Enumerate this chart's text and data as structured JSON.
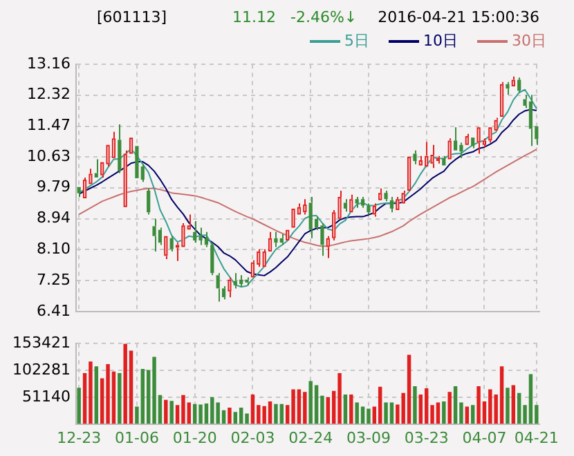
{
  "chart_data": [
    {
      "type": "candlestick",
      "title": "[601113]",
      "annotations": [
        "11.12",
        "-2.46%↓",
        "2016-04-21 15:00:36"
      ],
      "categories": [
        null,
        null,
        null,
        null,
        null,
        null,
        null,
        null,
        null,
        null,
        null,
        null,
        null,
        null,
        null,
        null,
        null,
        null,
        null,
        null,
        null,
        null,
        null,
        null,
        null,
        null,
        null,
        null,
        null,
        null,
        null,
        null,
        null,
        null,
        null,
        null,
        null,
        null,
        null,
        null,
        null,
        null,
        null,
        null,
        null,
        null,
        null,
        null,
        null,
        null,
        null,
        null,
        null,
        null,
        null,
        null,
        null,
        null,
        null,
        null,
        null,
        null,
        null,
        null,
        null,
        null,
        null,
        null,
        null,
        null,
        null,
        null,
        null,
        null,
        null,
        null,
        null,
        null,
        null,
        null
      ],
      "ohlc": [
        [
          9.81,
          9.86,
          9.54,
          9.64
        ],
        [
          9.5,
          10.07,
          9.48,
          10.01
        ],
        [
          9.89,
          10.31,
          9.86,
          10.17
        ],
        [
          10.19,
          10.57,
          10.05,
          10.07
        ],
        [
          10.13,
          10.52,
          10.07,
          10.49
        ],
        [
          10.43,
          11.0,
          10.37,
          10.96
        ],
        [
          10.6,
          11.32,
          10.57,
          11.14
        ],
        [
          11.1,
          11.52,
          10.19,
          10.25
        ],
        [
          9.26,
          10.81,
          9.24,
          10.72
        ],
        [
          10.72,
          11.2,
          10.69,
          11.16
        ],
        [
          10.93,
          10.96,
          10.01,
          10.05
        ],
        [
          10.37,
          10.43,
          9.95,
          10.01
        ],
        [
          9.71,
          9.77,
          9.06,
          9.12
        ],
        [
          8.74,
          8.94,
          8.05,
          8.47
        ],
        [
          8.64,
          8.7,
          8.23,
          8.29
        ],
        [
          7.93,
          8.5,
          7.84,
          8.47
        ],
        [
          8.41,
          8.47,
          8.05,
          8.11
        ],
        [
          8.15,
          8.29,
          7.79,
          8.23
        ],
        [
          8.17,
          8.82,
          8.15,
          8.76
        ],
        [
          8.65,
          9.06,
          8.64,
          8.76
        ],
        [
          8.58,
          8.88,
          8.29,
          8.35
        ],
        [
          8.47,
          8.7,
          8.23,
          8.35
        ],
        [
          8.41,
          8.58,
          8.17,
          8.23
        ],
        [
          8.23,
          8.29,
          7.4,
          7.46
        ],
        [
          7.4,
          7.46,
          6.68,
          7.04
        ],
        [
          7.04,
          7.1,
          6.74,
          6.8
        ],
        [
          6.96,
          7.34,
          6.8,
          7.28
        ],
        [
          7.24,
          7.46,
          7.04,
          7.12
        ],
        [
          7.28,
          7.4,
          7.08,
          7.16
        ],
        [
          7.28,
          7.34,
          7.12,
          7.2
        ],
        [
          7.34,
          7.81,
          7.31,
          7.75
        ],
        [
          7.69,
          8.11,
          7.63,
          8.05
        ],
        [
          7.63,
          8.11,
          7.63,
          8.05
        ],
        [
          8.05,
          8.58,
          8.03,
          8.41
        ],
        [
          8.41,
          8.58,
          8.17,
          8.29
        ],
        [
          8.41,
          8.52,
          8.23,
          8.29
        ],
        [
          8.35,
          8.67,
          8.31,
          8.64
        ],
        [
          8.7,
          9.26,
          8.67,
          9.22
        ],
        [
          9.06,
          9.36,
          9.02,
          9.26
        ],
        [
          9.12,
          9.48,
          9.06,
          9.33
        ],
        [
          9.38,
          9.54,
          8.41,
          8.64
        ],
        [
          8.94,
          9.0,
          8.64,
          8.7
        ],
        [
          8.76,
          8.82,
          7.93,
          8.23
        ],
        [
          8.17,
          8.47,
          7.87,
          8.41
        ],
        [
          8.41,
          9.18,
          8.35,
          9.12
        ],
        [
          8.94,
          9.71,
          8.91,
          9.54
        ],
        [
          9.38,
          9.48,
          9.14,
          9.22
        ],
        [
          9.12,
          9.6,
          9.1,
          9.48
        ],
        [
          9.48,
          9.54,
          9.24,
          9.36
        ],
        [
          9.48,
          9.54,
          9.24,
          9.3
        ],
        [
          9.3,
          9.36,
          9.06,
          9.12
        ],
        [
          9.06,
          9.36,
          9.0,
          9.3
        ],
        [
          9.45,
          9.77,
          9.42,
          9.65
        ],
        [
          9.65,
          9.71,
          9.42,
          9.48
        ],
        [
          9.45,
          9.54,
          9.12,
          9.22
        ],
        [
          9.18,
          9.54,
          9.14,
          9.48
        ],
        [
          9.36,
          9.71,
          9.33,
          9.65
        ],
        [
          9.71,
          10.66,
          9.69,
          10.64
        ],
        [
          10.72,
          10.81,
          10.43,
          10.52
        ],
        [
          10.4,
          10.66,
          10.37,
          10.54
        ],
        [
          10.37,
          11.04,
          10.33,
          10.66
        ],
        [
          10.45,
          10.96,
          10.33,
          10.69
        ],
        [
          10.52,
          10.66,
          10.45,
          10.6
        ],
        [
          10.6,
          10.66,
          10.37,
          10.4
        ],
        [
          10.57,
          11.14,
          10.54,
          11.08
        ],
        [
          11.08,
          11.44,
          10.78,
          10.81
        ],
        [
          10.96,
          11.02,
          10.6,
          10.78
        ],
        [
          10.96,
          11.26,
          10.93,
          11.2
        ],
        [
          11.16,
          11.2,
          10.87,
          10.93
        ],
        [
          11.02,
          11.47,
          10.72,
          11.44
        ],
        [
          10.96,
          11.14,
          10.9,
          11.08
        ],
        [
          11.08,
          11.47,
          11.02,
          11.44
        ],
        [
          11.35,
          11.7,
          11.32,
          11.64
        ],
        [
          11.73,
          12.68,
          11.7,
          12.62
        ],
        [
          12.62,
          12.68,
          12.33,
          12.5
        ],
        [
          12.56,
          12.83,
          12.54,
          12.74
        ],
        [
          12.74,
          12.8,
          12.38,
          12.44
        ],
        [
          12.21,
          12.33,
          11.97,
          12.03
        ],
        [
          12.15,
          12.33,
          10.93,
          11.4
        ],
        [
          11.47,
          11.5,
          10.96,
          11.12
        ]
      ],
      "series": [
        {
          "name": "5日",
          "type": "line",
          "color": "#3a9e96",
          "values": [
            9.65,
            9.75,
            9.85,
            9.95,
            10.08,
            10.34,
            10.57,
            10.58,
            10.71,
            10.85,
            10.66,
            10.44,
            10.21,
            9.76,
            9.19,
            8.87,
            8.49,
            8.31,
            8.37,
            8.47,
            8.44,
            8.49,
            8.49,
            8.23,
            7.89,
            7.58,
            7.36,
            7.14,
            7.08,
            7.11,
            7.3,
            7.46,
            7.64,
            7.89,
            8.11,
            8.22,
            8.34,
            8.57,
            8.74,
            8.95,
            9.02,
            9.03,
            8.83,
            8.66,
            8.62,
            8.8,
            8.9,
            9.15,
            9.34,
            9.38,
            9.3,
            9.31,
            9.35,
            9.37,
            9.35,
            9.43,
            9.5,
            9.69,
            9.9,
            10.17,
            10.4,
            10.61,
            10.6,
            10.58,
            10.69,
            10.72,
            10.73,
            10.85,
            10.96,
            11.03,
            11.09,
            11.22,
            11.31,
            11.64,
            11.86,
            12.19,
            12.39,
            12.47,
            12.22,
            11.95
          ]
        },
        {
          "name": "10日",
          "type": "line",
          "color": "#000066",
          "values": [
            9.62,
            9.7,
            9.78,
            9.86,
            9.95,
            10.05,
            10.15,
            10.25,
            10.35,
            10.46,
            10.5,
            10.5,
            10.4,
            10.24,
            10.02,
            9.77,
            9.47,
            9.26,
            9.07,
            8.83,
            8.66,
            8.49,
            8.4,
            8.3,
            8.18,
            8.01,
            7.93,
            7.82,
            7.66,
            7.5,
            7.44,
            7.41,
            7.39,
            7.49,
            7.61,
            7.76,
            7.9,
            8.11,
            8.32,
            8.53,
            8.62,
            8.68,
            8.7,
            8.7,
            8.78,
            8.91,
            8.97,
            8.99,
            9.0,
            9.0,
            9.05,
            9.11,
            9.25,
            9.36,
            9.37,
            9.36,
            9.4,
            9.52,
            9.64,
            9.76,
            9.91,
            10.05,
            10.15,
            10.24,
            10.43,
            10.56,
            10.67,
            10.73,
            10.77,
            10.86,
            10.9,
            10.98,
            11.08,
            11.3,
            11.44,
            11.64,
            11.8,
            11.89,
            11.93,
            11.9
          ]
        },
        {
          "name": "30日",
          "type": "line",
          "color": "#c87070",
          "values": [
            9.06,
            9.15,
            9.24,
            9.33,
            9.42,
            9.48,
            9.54,
            9.6,
            9.65,
            9.69,
            9.72,
            9.75,
            9.77,
            9.77,
            9.74,
            9.7,
            9.65,
            9.63,
            9.61,
            9.59,
            9.57,
            9.53,
            9.48,
            9.43,
            9.38,
            9.3,
            9.22,
            9.14,
            9.07,
            9.0,
            8.94,
            8.86,
            8.78,
            8.7,
            8.62,
            8.55,
            8.48,
            8.41,
            8.35,
            8.3,
            8.26,
            8.22,
            8.19,
            8.2,
            8.23,
            8.27,
            8.31,
            8.34,
            8.36,
            8.38,
            8.4,
            8.43,
            8.47,
            8.53,
            8.59,
            8.67,
            8.75,
            8.87,
            8.97,
            9.07,
            9.16,
            9.25,
            9.34,
            9.43,
            9.52,
            9.59,
            9.67,
            9.75,
            9.82,
            9.92,
            10.02,
            10.12,
            10.22,
            10.31,
            10.4,
            10.49,
            10.58,
            10.67,
            10.75,
            10.84
          ]
        }
      ],
      "ylim": [
        6.41,
        13.16
      ],
      "yticks": [
        6.41,
        7.25,
        {
          "value": 8.1,
          "label": "8.10"
        },
        8.94,
        9.79,
        10.63,
        11.47,
        12.32,
        13.16
      ],
      "grid": true,
      "legend": "top right",
      "tick_labels": "y"
    },
    {
      "type": "bar",
      "categories": [
        "12-23",
        null,
        null,
        null,
        null,
        null,
        null,
        null,
        null,
        null,
        "01-06",
        null,
        null,
        null,
        null,
        null,
        null,
        null,
        null,
        null,
        "01-20",
        null,
        null,
        null,
        null,
        null,
        null,
        null,
        null,
        null,
        "02-03",
        null,
        null,
        null,
        null,
        null,
        null,
        null,
        null,
        null,
        "02-24",
        null,
        null,
        null,
        null,
        null,
        null,
        null,
        null,
        null,
        "03-09",
        null,
        null,
        null,
        null,
        null,
        null,
        null,
        null,
        null,
        "03-23",
        null,
        null,
        null,
        null,
        null,
        null,
        null,
        null,
        null,
        "04-07",
        null,
        null,
        null,
        null,
        null,
        null,
        null,
        null,
        "04-21"
      ],
      "values": [
        69000,
        97000,
        119000,
        110000,
        87000,
        114000,
        100000,
        97000,
        153000,
        140000,
        33000,
        105000,
        103000,
        128000,
        55000,
        46000,
        44000,
        36000,
        55000,
        41000,
        38000,
        37000,
        39000,
        51000,
        41000,
        26000,
        31000,
        23000,
        31000,
        20000,
        56000,
        36000,
        34000,
        43000,
        38000,
        38000,
        36000,
        66000,
        66000,
        61000,
        82000,
        74000,
        54000,
        51000,
        63000,
        97000,
        56000,
        56000,
        41000,
        33000,
        29000,
        33000,
        71000,
        41000,
        41000,
        37000,
        59000,
        132000,
        72000,
        56000,
        68000,
        36000,
        41000,
        43000,
        61000,
        72000,
        41000,
        33000,
        36000,
        72000,
        43000,
        66000,
        56000,
        110000,
        69000,
        74000,
        59000,
        36000,
        95000,
        36000
      ],
      "colors": [
        "#3c8c3c",
        "#e02020",
        "#e02020",
        "#3c8c3c",
        "#e02020",
        "#e02020",
        "#e02020",
        "#3c8c3c",
        "#e02020",
        "#e02020",
        "#3c8c3c",
        "#3c8c3c",
        "#3c8c3c",
        "#3c8c3c",
        "#3c8c3c",
        "#e02020",
        "#3c8c3c",
        "#e02020",
        "#e02020",
        "#e02020",
        "#3c8c3c",
        "#3c8c3c",
        "#3c8c3c",
        "#3c8c3c",
        "#3c8c3c",
        "#3c8c3c",
        "#e02020",
        "#3c8c3c",
        "#3c8c3c",
        "#3c8c3c",
        "#e02020",
        "#e02020",
        "#e02020",
        "#e02020",
        "#3c8c3c",
        "#3c8c3c",
        "#e02020",
        "#e02020",
        "#e02020",
        "#e02020",
        "#3c8c3c",
        "#3c8c3c",
        "#3c8c3c",
        "#e02020",
        "#e02020",
        "#e02020",
        "#3c8c3c",
        "#e02020",
        "#3c8c3c",
        "#3c8c3c",
        "#3c8c3c",
        "#e02020",
        "#e02020",
        "#3c8c3c",
        "#3c8c3c",
        "#e02020",
        "#e02020",
        "#e02020",
        "#3c8c3c",
        "#e02020",
        "#e02020",
        "#e02020",
        "#e02020",
        "#3c8c3c",
        "#e02020",
        "#3c8c3c",
        "#3c8c3c",
        "#e02020",
        "#3c8c3c",
        "#e02020",
        "#e02020",
        "#e02020",
        "#e02020",
        "#e02020",
        "#3c8c3c",
        "#e02020",
        "#3c8c3c",
        "#3c8c3c",
        "#3c8c3c",
        "#3c8c3c"
      ],
      "ylim": [
        0,
        153421
      ],
      "yticks": [
        51140,
        102281,
        153421
      ],
      "grid": true
    }
  ]
}
